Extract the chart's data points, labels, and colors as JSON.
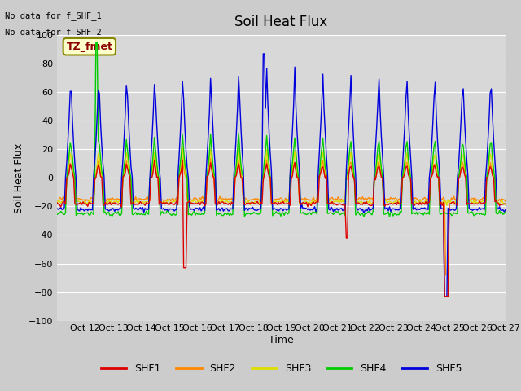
{
  "title": "Soil Heat Flux",
  "ylabel": "Soil Heat Flux",
  "xlabel": "Time",
  "ylim": [
    -100,
    100
  ],
  "fig_bg": "#cccccc",
  "plot_bg": "#d8d8d8",
  "legend_labels": [
    "SHF1",
    "SHF2",
    "SHF3",
    "SHF4",
    "SHF5"
  ],
  "legend_colors": [
    "#dd0000",
    "#ff8800",
    "#dddd00",
    "#00cc00",
    "#0000dd"
  ],
  "no_data_text": [
    "No data for f_SHF_1",
    "No data for f_SHF_2"
  ],
  "tz_label": "TZ_fmet",
  "n_days": 16,
  "title_fontsize": 12,
  "label_fontsize": 9,
  "tick_fontsize": 8,
  "linewidth": 1.0
}
